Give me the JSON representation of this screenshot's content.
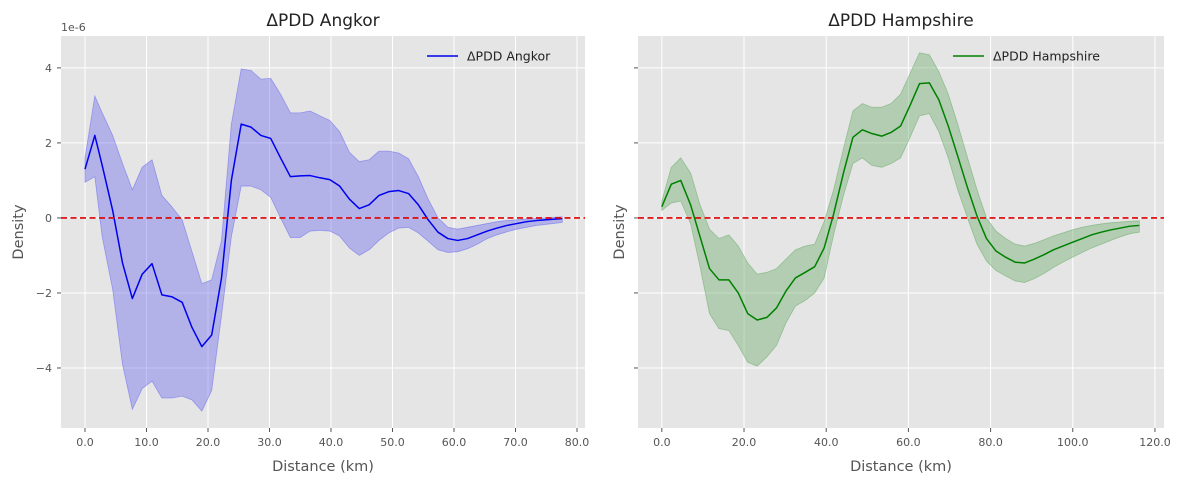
{
  "chart_data": [
    {
      "type": "line",
      "title": "ΔPDD Angkor",
      "xlabel": "Distance (km)",
      "ylabel": "Density",
      "y_offset_text": "1e-6",
      "xlim": [
        -3.9,
        81.3
      ],
      "ylim": [
        -5.6,
        4.85
      ],
      "xticks": [
        0,
        10,
        20,
        30,
        40,
        50,
        60,
        70,
        80
      ],
      "xtick_labels": [
        "0.0",
        "10.0",
        "20.0",
        "30.0",
        "40.0",
        "50.0",
        "60.0",
        "70.0",
        "80.0"
      ],
      "yticks": [
        -4,
        -2,
        0,
        2,
        4
      ],
      "ytick_labels": [
        "−4",
        "−2",
        "0",
        "2",
        "4"
      ],
      "grid": true,
      "legend_position": "top-right",
      "reference_line": {
        "y": 0,
        "color": "#e00000",
        "style": "dashed"
      },
      "series": [
        {
          "name": "ΔPDD Angkor",
          "color": "#0000ee",
          "band_color": "#6666ee",
          "x": [
            0.0,
            1.6,
            2.8,
            4.5,
            6.1,
            7.7,
            9.3,
            10.9,
            12.5,
            14.1,
            15.8,
            17.4,
            19.0,
            20.6,
            22.2,
            23.8,
            25.4,
            27.0,
            28.6,
            30.2,
            31.8,
            33.4,
            35.0,
            36.6,
            38.2,
            39.8,
            41.4,
            43.0,
            44.6,
            46.2,
            47.8,
            49.4,
            51.0,
            52.6,
            54.2,
            55.8,
            57.4,
            59.0,
            60.6,
            62.2,
            63.8,
            65.4,
            67.0,
            68.6,
            70.2,
            71.8,
            73.4,
            75.0,
            76.6,
            77.6
          ],
          "y": [
            1.3,
            2.2,
            1.4,
            0.2,
            -1.2,
            -2.15,
            -1.5,
            -1.22,
            -2.05,
            -2.1,
            -2.25,
            -2.92,
            -3.43,
            -3.12,
            -1.6,
            1.0,
            2.5,
            2.42,
            2.2,
            2.12,
            1.6,
            1.1,
            1.12,
            1.13,
            1.07,
            1.02,
            0.85,
            0.5,
            0.25,
            0.35,
            0.6,
            0.7,
            0.73,
            0.65,
            0.35,
            -0.05,
            -0.38,
            -0.55,
            -0.6,
            -0.55,
            -0.45,
            -0.35,
            -0.27,
            -0.2,
            -0.15,
            -0.1,
            -0.07,
            -0.05,
            -0.03,
            -0.02
          ],
          "lower": [
            0.95,
            1.1,
            -0.5,
            -1.9,
            -3.9,
            -5.1,
            -4.55,
            -4.35,
            -4.8,
            -4.8,
            -4.75,
            -4.85,
            -5.15,
            -4.6,
            -2.6,
            -0.5,
            0.85,
            0.85,
            0.75,
            0.55,
            0.0,
            -0.52,
            -0.52,
            -0.35,
            -0.33,
            -0.35,
            -0.48,
            -0.8,
            -1.0,
            -0.85,
            -0.6,
            -0.4,
            -0.27,
            -0.25,
            -0.4,
            -0.62,
            -0.85,
            -0.92,
            -0.9,
            -0.82,
            -0.7,
            -0.55,
            -0.45,
            -0.37,
            -0.3,
            -0.25,
            -0.2,
            -0.17,
            -0.14,
            -0.12
          ],
          "upper": [
            1.6,
            3.25,
            2.8,
            2.2,
            1.45,
            0.75,
            1.35,
            1.55,
            0.6,
            0.3,
            -0.05,
            -0.9,
            -1.75,
            -1.65,
            -0.6,
            2.5,
            3.97,
            3.93,
            3.7,
            3.72,
            3.3,
            2.8,
            2.8,
            2.85,
            2.72,
            2.6,
            2.3,
            1.75,
            1.5,
            1.55,
            1.78,
            1.78,
            1.73,
            1.58,
            1.1,
            0.5,
            0.0,
            -0.25,
            -0.3,
            -0.25,
            -0.2,
            -0.15,
            -0.1,
            -0.07,
            -0.05,
            -0.03,
            -0.01,
            0.0,
            0.02,
            0.03
          ]
        }
      ]
    },
    {
      "type": "line",
      "title": "ΔPDD Hampshire",
      "xlabel": "Distance (km)",
      "ylabel": "Density",
      "xlim": [
        -5.8,
        122.2
      ],
      "ylim": [
        -5.6,
        4.85
      ],
      "xticks": [
        0,
        20,
        40,
        60,
        80,
        100,
        120
      ],
      "xtick_labels": [
        "0.0",
        "20.0",
        "40.0",
        "60.0",
        "80.0",
        "100.0",
        "120.0"
      ],
      "yticks": [
        -4,
        -2,
        0,
        2,
        4
      ],
      "grid": true,
      "legend_position": "top-right",
      "reference_line": {
        "y": 0,
        "color": "#e00000",
        "style": "dashed"
      },
      "series": [
        {
          "name": "ΔPDD Hampshire",
          "color": "#008000",
          "band_color": "#66aa66",
          "x": [
            0.0,
            2.3,
            4.6,
            7.0,
            9.3,
            11.6,
            13.9,
            16.3,
            18.6,
            20.9,
            23.2,
            25.6,
            27.9,
            30.2,
            32.5,
            34.9,
            37.2,
            39.5,
            41.8,
            44.2,
            46.5,
            48.8,
            51.1,
            53.5,
            55.8,
            58.1,
            60.4,
            62.7,
            65.1,
            67.4,
            69.7,
            72.0,
            74.4,
            76.7,
            79.0,
            81.3,
            83.7,
            86.0,
            88.3,
            90.6,
            93.0,
            95.3,
            97.6,
            99.9,
            102.3,
            104.6,
            106.9,
            109.2,
            111.6,
            113.9,
            116.2
          ],
          "y": [
            0.3,
            0.9,
            1.0,
            0.35,
            -0.5,
            -1.35,
            -1.65,
            -1.65,
            -2.0,
            -2.55,
            -2.72,
            -2.65,
            -2.4,
            -1.95,
            -1.6,
            -1.45,
            -1.3,
            -0.8,
            0.1,
            1.2,
            2.15,
            2.35,
            2.25,
            2.18,
            2.28,
            2.45,
            3.0,
            3.58,
            3.6,
            3.15,
            2.45,
            1.65,
            0.8,
            0.05,
            -0.55,
            -0.88,
            -1.05,
            -1.18,
            -1.2,
            -1.1,
            -0.98,
            -0.85,
            -0.75,
            -0.65,
            -0.55,
            -0.45,
            -0.38,
            -0.32,
            -0.27,
            -0.22,
            -0.2
          ],
          "lower": [
            0.2,
            0.4,
            0.45,
            -0.15,
            -1.3,
            -2.55,
            -2.95,
            -3.0,
            -3.4,
            -3.85,
            -3.95,
            -3.7,
            -3.4,
            -2.8,
            -2.35,
            -2.2,
            -2.0,
            -1.6,
            -0.45,
            0.6,
            1.45,
            1.6,
            1.4,
            1.35,
            1.45,
            1.6,
            2.15,
            2.72,
            2.78,
            2.3,
            1.6,
            0.75,
            0.0,
            -0.7,
            -1.15,
            -1.4,
            -1.55,
            -1.68,
            -1.72,
            -1.62,
            -1.48,
            -1.32,
            -1.18,
            -1.05,
            -0.92,
            -0.8,
            -0.7,
            -0.6,
            -0.5,
            -0.42,
            -0.38
          ],
          "upper": [
            0.45,
            1.35,
            1.6,
            1.2,
            0.35,
            -0.3,
            -0.55,
            -0.45,
            -0.75,
            -1.2,
            -1.5,
            -1.45,
            -1.35,
            -1.1,
            -0.85,
            -0.75,
            -0.7,
            -0.1,
            0.75,
            1.85,
            2.85,
            3.05,
            2.95,
            2.95,
            3.05,
            3.3,
            3.85,
            4.4,
            4.35,
            3.9,
            3.3,
            2.5,
            1.6,
            0.75,
            0.0,
            -0.35,
            -0.55,
            -0.7,
            -0.75,
            -0.68,
            -0.58,
            -0.48,
            -0.4,
            -0.32,
            -0.25,
            -0.2,
            -0.16,
            -0.13,
            -0.11,
            -0.09,
            -0.08
          ]
        }
      ]
    }
  ]
}
